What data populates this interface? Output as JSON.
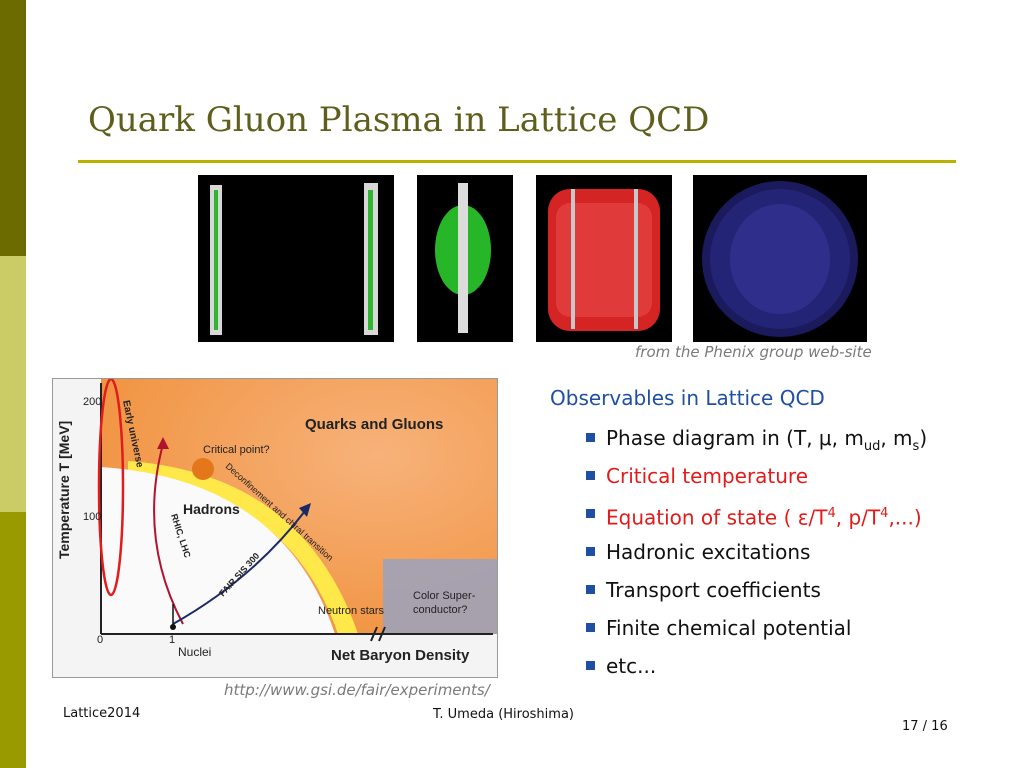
{
  "slide": {
    "title": "Quark Gluon Plasma in Lattice QCD",
    "colors": {
      "title": "#5f5f1d",
      "rule": "#b9b300",
      "bullet": "#1f4fa3",
      "highlight": "#e41a1a"
    }
  },
  "simulation": {
    "caption": "from the Phenix group web-site",
    "frames": [
      "collision-frame-1",
      "collision-frame-2",
      "collision-frame-3",
      "collision-frame-4"
    ]
  },
  "phase_diagram": {
    "y_axis_label": "Temperature T [MeV]",
    "x_axis_label": "Net Baryon Density",
    "y_tick_200": "200",
    "y_tick_100": "100",
    "x_tick_0": "0",
    "x_tick_1": "1",
    "label_quarks_gluons": "Quarks and Gluons",
    "label_critical_point": "Critical point?",
    "label_hadrons": "Hadrons",
    "label_early_universe": "Early universe",
    "label_rhic_lhc": "RHIC, LHC",
    "label_fair": "FAIR SIS 300",
    "label_transition": "Deconfinement and chiral transition",
    "label_neutron_stars": "Neutron stars",
    "label_color_super_1": "Color Super-",
    "label_color_super_2": "conductor?",
    "label_nuclei": "Nuclei",
    "source_url": "http://www.gsi.de/fair/experiments/"
  },
  "observables": {
    "heading": "Observables in Lattice QCD",
    "items": [
      {
        "text": "Phase diagram in (T, μ, m",
        "sub1": "ud",
        "mid": ", m",
        "sub2": "s",
        "tail": ")"
      },
      {
        "text": "Critical temperature"
      },
      {
        "text": "Equation of state ( ε/T",
        "sup1": "4",
        "mid": ", p/T",
        "sup2": "4",
        "tail": ",...)"
      },
      {
        "text": "Hadronic excitations"
      },
      {
        "text": "Transport coefficients"
      },
      {
        "text": "Finite chemical potential"
      },
      {
        "text": "etc..."
      }
    ]
  },
  "footer": {
    "left": "Lattice2014",
    "center": "T. Umeda (Hiroshima)",
    "page": "17 / 16"
  }
}
